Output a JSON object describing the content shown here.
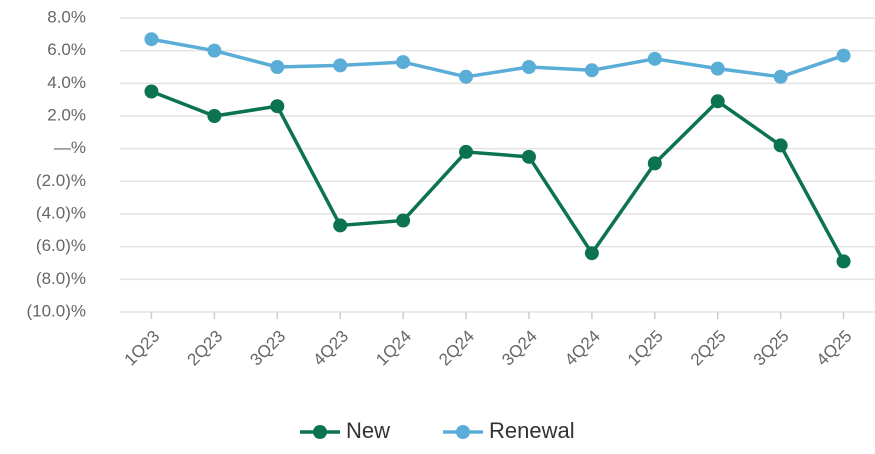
{
  "chart_data": {
    "type": "line",
    "categories": [
      "1Q23",
      "2Q23",
      "3Q23",
      "4Q23",
      "1Q24",
      "2Q24",
      "3Q24",
      "4Q24",
      "1Q25",
      "2Q25",
      "3Q25",
      "4Q25"
    ],
    "series": [
      {
        "name": "New",
        "color": "#0b7352",
        "values": [
          3.5,
          2.0,
          2.6,
          -4.7,
          -4.4,
          -0.2,
          -0.5,
          -6.4,
          -0.9,
          2.9,
          0.2,
          -6.9
        ]
      },
      {
        "name": "Renewal",
        "color": "#5aadd6",
        "values": [
          6.7,
          6.0,
          5.0,
          5.1,
          5.3,
          4.4,
          5.0,
          4.8,
          5.5,
          4.9,
          4.4,
          5.7
        ]
      }
    ],
    "ylim": [
      -10,
      8
    ],
    "yticks": [
      {
        "value": 8,
        "label": "8.0%"
      },
      {
        "value": 6,
        "label": "6.0%"
      },
      {
        "value": 4,
        "label": "4.0%"
      },
      {
        "value": 2,
        "label": "2.0%"
      },
      {
        "value": 0,
        "label": "—%"
      },
      {
        "value": -2,
        "label": "(2.0)%"
      },
      {
        "value": -4,
        "label": "(4.0)%"
      },
      {
        "value": -6,
        "label": "(6.0)%"
      },
      {
        "value": -8,
        "label": "(8.0)%"
      },
      {
        "value": -10,
        "label": "(10.0)%"
      }
    ],
    "grid": true,
    "legend": "bottom"
  }
}
